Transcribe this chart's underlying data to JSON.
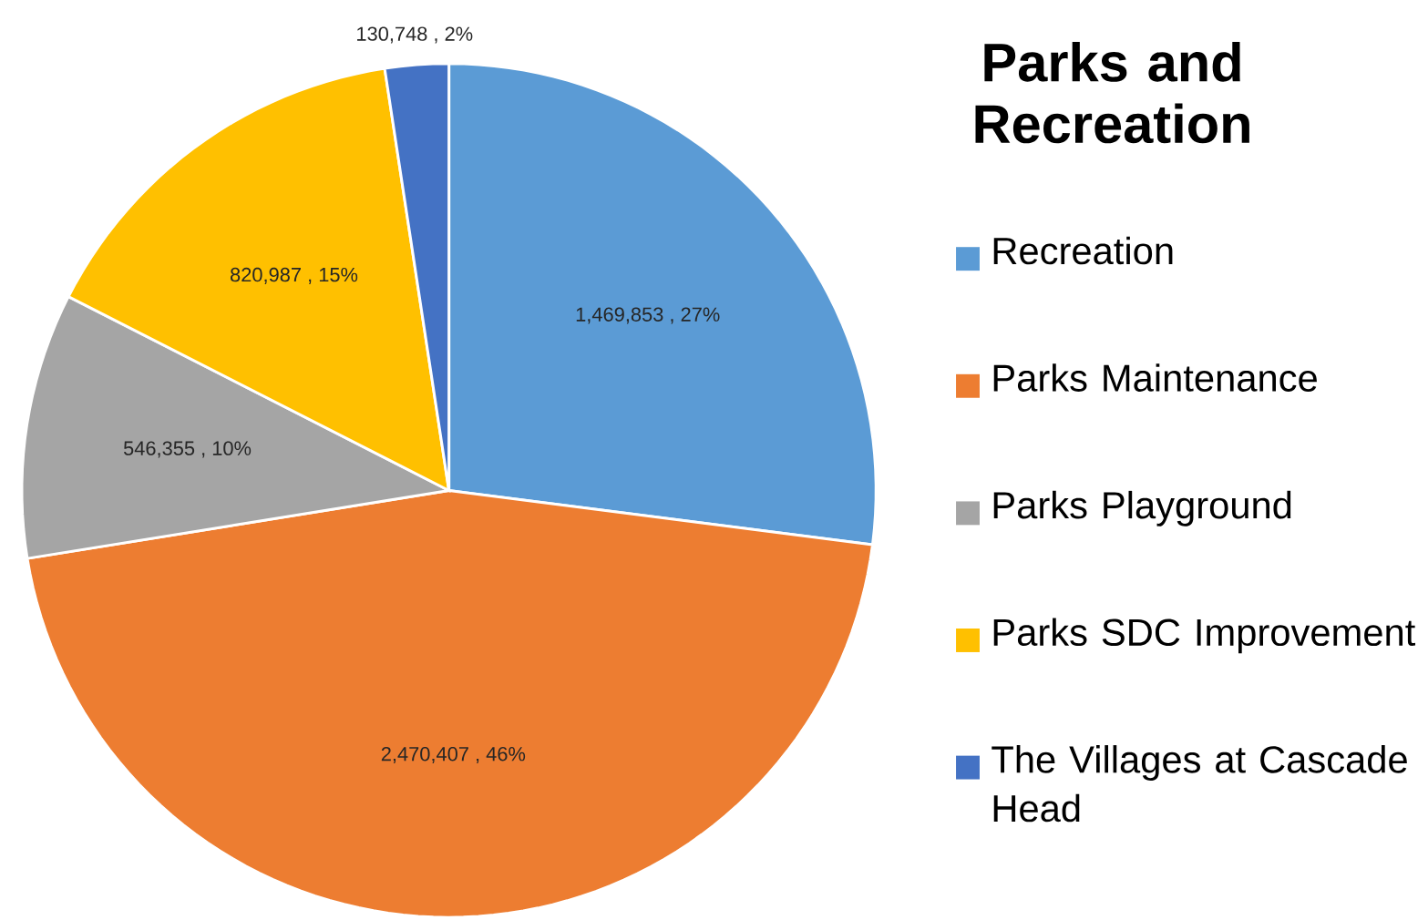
{
  "chart_data": {
    "type": "pie",
    "title": "Parks and Recreation",
    "categories": [
      "Recreation",
      "Parks Maintenance",
      "Parks Playground",
      "Parks SDC Improvement",
      "The Villages at Cascade Head"
    ],
    "values": [
      1469853,
      2470407,
      546355,
      820987,
      130748
    ],
    "value_labels": [
      "1,469,853 , 27%",
      "2,470,407 , 46%",
      "546,355 , 10%",
      "820,987 , 15%",
      "130,748 , 2%"
    ],
    "colors": [
      "#5b9bd5",
      "#ed7d31",
      "#a5a5a5",
      "#ffc000",
      "#4472c4"
    ],
    "legend": "right"
  }
}
